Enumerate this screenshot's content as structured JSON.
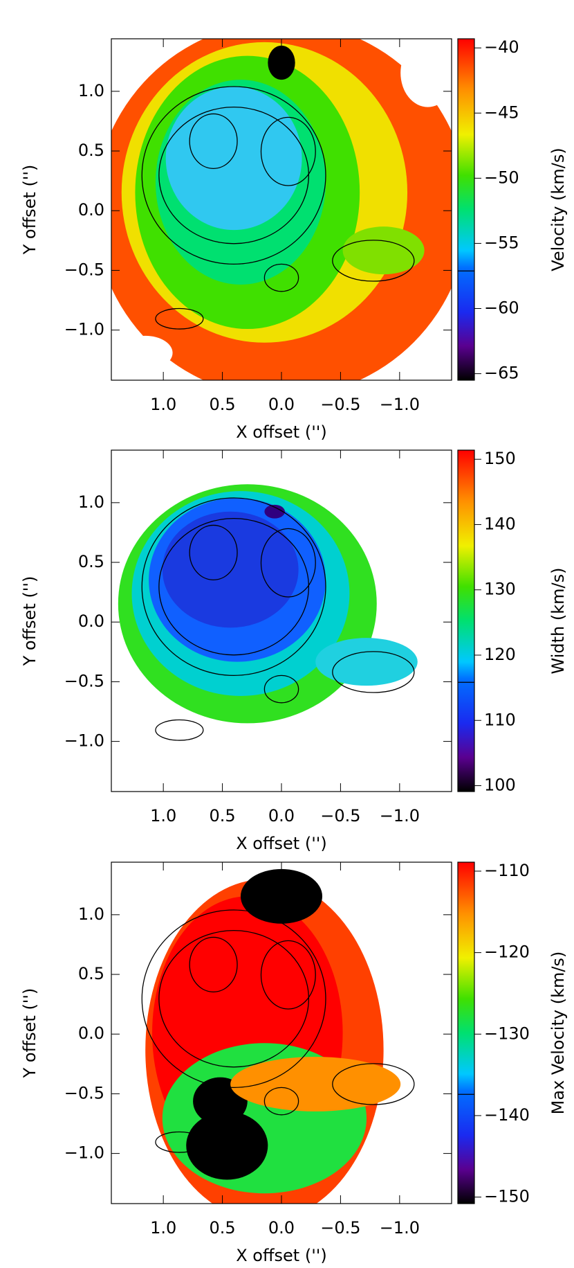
{
  "chart_data": [
    {
      "type": "heatmap",
      "xlabel": "X offset ('')",
      "ylabel": "Y offset ('')",
      "colorbar_label": "Velocity (km/s)",
      "xlim": [
        1.44,
        -1.44
      ],
      "ylim": [
        -1.42,
        1.44
      ],
      "xticks": [
        {
          "value": 1.0,
          "label": "1.0"
        },
        {
          "value": 0.5,
          "label": "0.5"
        },
        {
          "value": 0.0,
          "label": "0.0"
        },
        {
          "value": -0.5,
          "label": "−0.5"
        },
        {
          "value": -1.0,
          "label": "−1.0"
        }
      ],
      "yticks": [
        {
          "value": 1.0,
          "label": "1.0"
        },
        {
          "value": 0.5,
          "label": "0.5"
        },
        {
          "value": 0.0,
          "label": "0.0"
        },
        {
          "value": -0.5,
          "label": "−0.5"
        },
        {
          "value": -1.0,
          "label": "−1.0"
        }
      ],
      "clim": [
        -65.5,
        -39.3
      ],
      "cticks": [
        {
          "value": -40,
          "label": "−40"
        },
        {
          "value": -45,
          "label": "−45"
        },
        {
          "value": -50,
          "label": "−50"
        },
        {
          "value": -55,
          "label": "−55"
        },
        {
          "value": -60,
          "label": "−60"
        },
        {
          "value": -65,
          "label": "−65"
        }
      ]
    },
    {
      "type": "heatmap",
      "xlabel": "X offset ('')",
      "ylabel": "Y offset ('')",
      "colorbar_label": "Width (km/s)",
      "xlim": [
        1.44,
        -1.44
      ],
      "ylim": [
        -1.42,
        1.44
      ],
      "xticks": [
        {
          "value": 1.0,
          "label": "1.0"
        },
        {
          "value": 0.5,
          "label": "0.5"
        },
        {
          "value": 0.0,
          "label": "0.0"
        },
        {
          "value": -0.5,
          "label": "−0.5"
        },
        {
          "value": -1.0,
          "label": "−1.0"
        }
      ],
      "yticks": [
        {
          "value": 1.0,
          "label": "1.0"
        },
        {
          "value": 0.5,
          "label": "0.5"
        },
        {
          "value": 0.0,
          "label": "0.0"
        },
        {
          "value": -0.5,
          "label": "−0.5"
        },
        {
          "value": -1.0,
          "label": "−1.0"
        }
      ],
      "clim": [
        99.1,
        151.4
      ],
      "cticks": [
        150,
        140,
        130,
        120,
        110,
        100
      ]
    },
    {
      "type": "heatmap",
      "xlabel": "X offset ('')",
      "ylabel": "Y offset ('')",
      "colorbar_label": "Max Velocity (km/s)",
      "xlim": [
        1.44,
        -1.44
      ],
      "ylim": [
        -1.42,
        1.44
      ],
      "xticks": [
        {
          "value": 1.0,
          "label": "1.0"
        },
        {
          "value": 0.5,
          "label": "0.5"
        },
        {
          "value": 0.0,
          "label": "0.0"
        },
        {
          "value": -0.5,
          "label": "−0.5"
        },
        {
          "value": -1.0,
          "label": "−1.0"
        }
      ],
      "yticks": [
        {
          "value": 1.0,
          "label": "1.0"
        },
        {
          "value": 0.5,
          "label": "0.5"
        },
        {
          "value": 0.0,
          "label": "0.0"
        },
        {
          "value": -0.5,
          "label": "−0.5"
        },
        {
          "value": -1.0,
          "label": "−1.0"
        }
      ],
      "clim": [
        -150.8,
        -108.9
      ],
      "cticks": [
        {
          "value": -110,
          "label": "−110"
        },
        {
          "value": -120,
          "label": "−120"
        },
        {
          "value": -130,
          "label": "−130"
        },
        {
          "value": -140,
          "label": "−140"
        },
        {
          "value": -150,
          "label": "−150"
        }
      ]
    }
  ]
}
